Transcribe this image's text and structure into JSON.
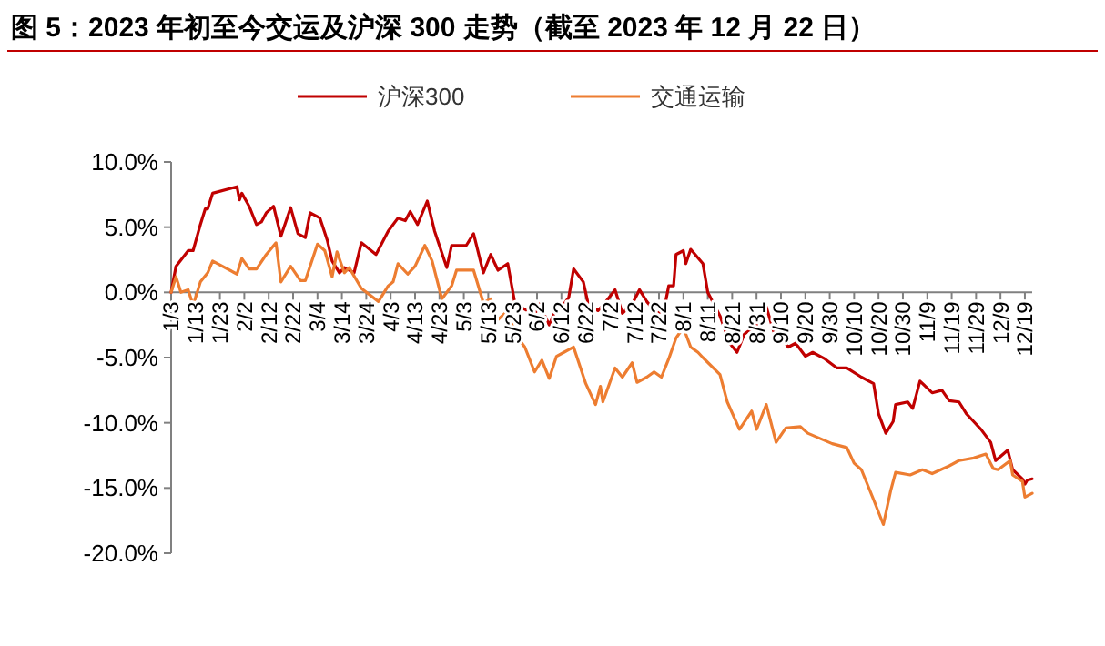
{
  "chart_data": {
    "type": "line",
    "title": "图 5：2023 年初至今交运及沪深 300 走势（截至 2023 年 12 月 22 日）",
    "xlim": [
      "--01-03",
      "--12-22"
    ],
    "xticks": [
      {
        "value": "--01-03",
        "label": "1/3"
      },
      {
        "value": "--01-13",
        "label": "1/13"
      },
      {
        "value": "--01-23",
        "label": "1/23"
      },
      {
        "value": "--02-02",
        "label": "2/2"
      },
      {
        "value": "--02-12",
        "label": "2/12"
      },
      {
        "value": "--02-22",
        "label": "2/22"
      },
      {
        "value": "--03-04",
        "label": "3/4"
      },
      {
        "value": "--03-14",
        "label": "3/14"
      },
      {
        "value": "--03-24",
        "label": "3/24"
      },
      {
        "value": "--04-03",
        "label": "4/3"
      },
      {
        "value": "--04-13",
        "label": "4/13"
      },
      {
        "value": "--04-23",
        "label": "4/23"
      },
      {
        "value": "--05-03",
        "label": "5/3"
      },
      {
        "value": "--05-13",
        "label": "5/13"
      },
      {
        "value": "--05-23",
        "label": "5/23"
      },
      {
        "value": "--06-02",
        "label": "6/2"
      },
      {
        "value": "--06-12",
        "label": "6/12"
      },
      {
        "value": "--06-22",
        "label": "6/22"
      },
      {
        "value": "--07-02",
        "label": "7/2"
      },
      {
        "value": "--07-12",
        "label": "7/12"
      },
      {
        "value": "--07-22",
        "label": "7/22"
      },
      {
        "value": "--08-01",
        "label": "8/1"
      },
      {
        "value": "--08-11",
        "label": "8/11"
      },
      {
        "value": "--08-21",
        "label": "8/21"
      },
      {
        "value": "--08-31",
        "label": "8/31"
      },
      {
        "value": "--09-10",
        "label": "9/10"
      },
      {
        "value": "--09-20",
        "label": "9/20"
      },
      {
        "value": "--09-30",
        "label": "9/30"
      },
      {
        "value": "--10-10",
        "label": "10/10"
      },
      {
        "value": "--10-20",
        "label": "10/20"
      },
      {
        "value": "--10-30",
        "label": "10/30"
      },
      {
        "value": "--11-09",
        "label": "11/9"
      },
      {
        "value": "--11-19",
        "label": "11/19"
      },
      {
        "value": "--11-29",
        "label": "11/29"
      },
      {
        "value": "--12-09",
        "label": "12/9"
      },
      {
        "value": "--12-19",
        "label": "12/19"
      }
    ],
    "ylim": [
      -20,
      10
    ],
    "yticks": [
      {
        "value": -20,
        "label": "-20.0%"
      },
      {
        "value": -15,
        "label": "-15.0%"
      },
      {
        "value": -10,
        "label": "-10.0%"
      },
      {
        "value": -5,
        "label": "-5.0%"
      },
      {
        "value": 0,
        "label": "0.0%"
      },
      {
        "value": 5,
        "label": "5.0%"
      },
      {
        "value": 10,
        "label": "10.0%"
      }
    ],
    "grid": false,
    "legend": "top",
    "marker": "none",
    "line_style": "solid",
    "series": [
      {
        "name": "沪深300",
        "color": "#c00000",
        "x": [
          "--01-03",
          "--01-05",
          "--01-10",
          "--01-12",
          "--01-15",
          "--01-17",
          "--01-18",
          "--01-20",
          "--01-30",
          "--01-31",
          "--02-01",
          "--02-04",
          "--02-07",
          "--02-09",
          "--02-11",
          "--02-14",
          "--02-17",
          "--02-21",
          "--02-24",
          "--02-27",
          "--03-01",
          "--03-05",
          "--03-08",
          "--03-10",
          "--03-13",
          "--03-15",
          "--03-19",
          "--03-22",
          "--03-28",
          "--04-02",
          "--04-06",
          "--04-09",
          "--04-11",
          "--04-14",
          "--04-18",
          "--04-21",
          "--04-26",
          "--04-28",
          "--05-04",
          "--05-07",
          "--05-11",
          "--05-14",
          "--05-17",
          "--05-21",
          "--05-24",
          "--05-29",
          "--06-01",
          "--06-03",
          "--06-07",
          "--06-10",
          "--06-13",
          "--06-15",
          "--06-17",
          "--06-21",
          "--06-23",
          "--06-27",
          "--06-29",
          "--07-04",
          "--07-07",
          "--07-11",
          "--07-14",
          "--07-17",
          "--07-21",
          "--07-24",
          "--07-26",
          "--07-28",
          "--07-29",
          "--08-01",
          "--08-02",
          "--08-04",
          "--08-09",
          "--08-11",
          "--08-16",
          "--08-20",
          "--08-23",
          "--08-26",
          "--08-31",
          "--09-04",
          "--09-07",
          "--09-11",
          "--09-13",
          "--09-16",
          "--09-20",
          "--09-23",
          "--09-28",
          "--10-03",
          "--10-07",
          "--10-13",
          "--10-18",
          "--10-20",
          "--10-23",
          "--10-26",
          "--10-27",
          "--11-01",
          "--11-03",
          "--11-06",
          "--11-11",
          "--11-15",
          "--11-18",
          "--11-22",
          "--11-25",
          "--11-28",
          "--12-01",
          "--12-05",
          "--12-07",
          "--12-12",
          "--12-14",
          "--12-18",
          "--12-19",
          "--12-20",
          "--12-22"
        ],
        "values": [
          0,
          2.0,
          3.2,
          3.2,
          5.2,
          6.4,
          6.4,
          7.6,
          8.1,
          7.1,
          7.6,
          6.6,
          5.2,
          5.4,
          6.1,
          6.6,
          4.3,
          6.5,
          4.5,
          4.2,
          6.1,
          5.7,
          4.0,
          2.4,
          1.5,
          1.9,
          1.5,
          3.8,
          2.9,
          4.7,
          5.7,
          5.5,
          6.2,
          5.2,
          7.0,
          4.7,
          1.9,
          3.6,
          3.6,
          4.5,
          1.5,
          2.9,
          1.7,
          2.2,
          -0.9,
          -1.4,
          -1.7,
          -0.9,
          -2.5,
          -1.2,
          -0.9,
          -0.4,
          1.8,
          0.8,
          -0.9,
          -1.4,
          -1.0,
          0.2,
          -1.6,
          -0.9,
          0.2,
          -0.7,
          -1.6,
          -1.4,
          0.5,
          0.5,
          2.9,
          3.2,
          2.2,
          3.3,
          2.2,
          0,
          -1.8,
          -3.9,
          -4.6,
          -3.2,
          -2.5,
          -1.1,
          -3.0,
          -3.7,
          -4.2,
          -3.9,
          -4.9,
          -4.6,
          -5.1,
          -5.8,
          -5.8,
          -6.5,
          -7.0,
          -9.3,
          -10.8,
          -9.9,
          -8.6,
          -8.4,
          -8.9,
          -6.8,
          -7.7,
          -7.5,
          -8.3,
          -8.4,
          -9.3,
          -9.9,
          -10.5,
          -11.5,
          -12.9,
          -12.1,
          -13.6,
          -14.3,
          -14.7,
          -14.4,
          -14.3
        ]
      },
      {
        "name": "交通运输",
        "color": "#ed7d31",
        "x": [
          "--01-03",
          "--01-05",
          "--01-07",
          "--01-10",
          "--01-12",
          "--01-15",
          "--01-18",
          "--01-20",
          "--01-30",
          "--02-01",
          "--02-04",
          "--02-07",
          "--02-11",
          "--02-15",
          "--02-17",
          "--02-21",
          "--02-25",
          "--02-27",
          "--03-04",
          "--03-07",
          "--03-10",
          "--03-12",
          "--03-15",
          "--03-17",
          "--03-22",
          "--03-29",
          "--04-02",
          "--04-04",
          "--04-06",
          "--04-10",
          "--04-13",
          "--04-17",
          "--04-20",
          "--04-24",
          "--04-28",
          "--04-30",
          "--05-07",
          "--05-11",
          "--05-14",
          "--05-17",
          "--05-21",
          "--05-24",
          "--05-28",
          "--06-01",
          "--06-04",
          "--06-07",
          "--06-10",
          "--06-13",
          "--06-15",
          "--06-17",
          "--06-22",
          "--06-26",
          "--06-28",
          "--06-29",
          "--07-04",
          "--07-07",
          "--07-11",
          "--07-13",
          "--07-17",
          "--07-20",
          "--07-23",
          "--07-26",
          "--07-29",
          "--08-01",
          "--08-04",
          "--08-07",
          "--08-09",
          "--08-16",
          "--08-19",
          "--08-24",
          "--08-29",
          "--08-31",
          "--09-04",
          "--09-08",
          "--09-12",
          "--09-18",
          "--09-21",
          "--09-26",
          "--10-01",
          "--10-07",
          "--10-10",
          "--10-13",
          "--10-18",
          "--10-22",
          "--10-25",
          "--10-27",
          "--11-02",
          "--11-07",
          "--11-11",
          "--11-18",
          "--11-22",
          "--11-28",
          "--12-03",
          "--12-06",
          "--12-08",
          "--12-13",
          "--12-14",
          "--12-18",
          "--12-19",
          "--12-22"
        ],
        "values": [
          0,
          1.2,
          0,
          0.2,
          -1.0,
          0.8,
          1.5,
          2.4,
          1.4,
          2.6,
          1.8,
          1.8,
          2.9,
          3.8,
          0.8,
          2.0,
          0.9,
          0.9,
          3.7,
          3.2,
          1.2,
          3.1,
          1.5,
          1.9,
          0.3,
          -0.7,
          0.5,
          0.8,
          2.2,
          1.4,
          2.0,
          3.6,
          2.4,
          -0.5,
          0.5,
          1.7,
          1.7,
          -0.8,
          -0.5,
          -2.1,
          -1.4,
          -3.2,
          -4.2,
          -6.1,
          -5.2,
          -6.6,
          -4.9,
          -4.6,
          -4.4,
          -4.2,
          -7.0,
          -8.6,
          -7.2,
          -8.4,
          -5.8,
          -6.5,
          -5.4,
          -6.9,
          -6.5,
          -6.1,
          -6.5,
          -5.1,
          -3.5,
          -2.7,
          -4.2,
          -4.6,
          -5.0,
          -6.3,
          -8.4,
          -10.5,
          -9.1,
          -10.5,
          -8.6,
          -11.5,
          -10.4,
          -10.3,
          -10.8,
          -11.2,
          -11.6,
          -11.9,
          -13.1,
          -13.6,
          -15.9,
          -17.8,
          -15.2,
          -13.8,
          -14.0,
          -13.6,
          -13.9,
          -13.3,
          -12.9,
          -12.7,
          -12.4,
          -13.5,
          -13.6,
          -12.9,
          -14.0,
          -14.5,
          -15.7,
          -15.4
        ]
      }
    ]
  }
}
